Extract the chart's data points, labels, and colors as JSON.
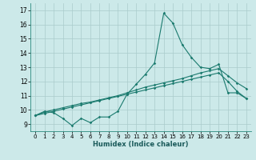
{
  "xlabel": "Humidex (Indice chaleur)",
  "ylabel": "",
  "bg_color": "#cce9e9",
  "grid_color": "#aacccc",
  "line_color": "#1a7a6e",
  "xlim": [
    -0.5,
    23.5
  ],
  "ylim": [
    8.5,
    17.5
  ],
  "xticks": [
    0,
    1,
    2,
    3,
    4,
    5,
    6,
    7,
    8,
    9,
    10,
    11,
    12,
    13,
    14,
    15,
    16,
    17,
    18,
    19,
    20,
    21,
    22,
    23
  ],
  "yticks": [
    9,
    10,
    11,
    12,
    13,
    14,
    15,
    16,
    17
  ],
  "line1_x": [
    0,
    1,
    2,
    3,
    4,
    5,
    6,
    7,
    8,
    9,
    10,
    11,
    12,
    13,
    14,
    15,
    16,
    17,
    18,
    19,
    20,
    21,
    22,
    23
  ],
  "line1_y": [
    9.6,
    9.9,
    9.8,
    9.4,
    8.9,
    9.4,
    9.1,
    9.5,
    9.5,
    9.9,
    11.1,
    11.8,
    12.5,
    13.3,
    16.8,
    16.1,
    14.6,
    13.7,
    13.0,
    12.9,
    13.2,
    11.2,
    11.2,
    10.8
  ],
  "line2_x": [
    0,
    1,
    2,
    3,
    4,
    5,
    6,
    7,
    8,
    9,
    10,
    11,
    12,
    13,
    14,
    15,
    16,
    17,
    18,
    19,
    20,
    21,
    22,
    23
  ],
  "line2_y": [
    9.6,
    9.85,
    10.0,
    10.15,
    10.3,
    10.45,
    10.55,
    10.7,
    10.85,
    11.0,
    11.2,
    11.4,
    11.6,
    11.75,
    11.9,
    12.05,
    12.2,
    12.4,
    12.6,
    12.75,
    12.9,
    12.4,
    11.9,
    11.5
  ],
  "line3_x": [
    0,
    1,
    2,
    3,
    4,
    5,
    6,
    7,
    8,
    9,
    10,
    11,
    12,
    13,
    14,
    15,
    16,
    17,
    18,
    19,
    20,
    21,
    22,
    23
  ],
  "line3_y": [
    9.6,
    9.75,
    9.9,
    10.05,
    10.2,
    10.35,
    10.5,
    10.65,
    10.8,
    10.95,
    11.1,
    11.25,
    11.4,
    11.55,
    11.7,
    11.85,
    12.0,
    12.15,
    12.3,
    12.45,
    12.6,
    12.0,
    11.3,
    10.8
  ]
}
